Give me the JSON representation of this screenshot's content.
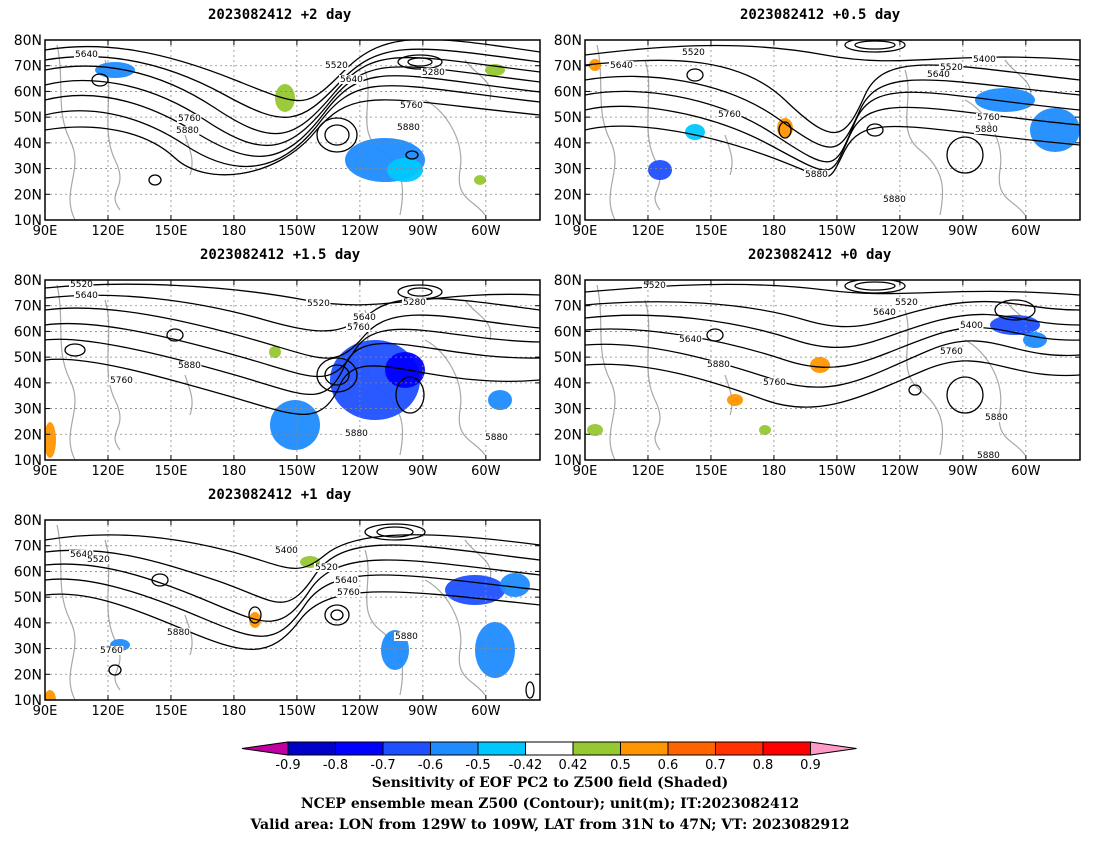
{
  "panels": [
    {
      "title": "2023082412 +2 day",
      "contour_labels": [
        "5640",
        "5520",
        "5640",
        "5280",
        "5760",
        "5760",
        "5880",
        "5880"
      ]
    },
    {
      "title": "2023082412 +0.5 day",
      "contour_labels": [
        "5520",
        "5640",
        "5400",
        "5520",
        "5640",
        "5760",
        "5760",
        "5880",
        "5880",
        "5880"
      ]
    },
    {
      "title": "2023082412 +1.5 day",
      "contour_labels": [
        "5520",
        "5640",
        "5520",
        "5280",
        "5640",
        "5760",
        "5760",
        "5880",
        "5880",
        "5880"
      ]
    },
    {
      "title": "2023082412 +0 day",
      "contour_labels": [
        "5520",
        "5520",
        "5640",
        "5400",
        "5640",
        "5760",
        "5880",
        "5760",
        "5880",
        "5880"
      ]
    },
    {
      "title": "2023082412 +1 day",
      "contour_labels": [
        "5400",
        "5520",
        "5640",
        "5520",
        "5640",
        "5760",
        "5880",
        "5760",
        "5880"
      ]
    }
  ],
  "axes": {
    "lat_labels": [
      "80N",
      "70N",
      "60N",
      "50N",
      "40N",
      "30N",
      "20N",
      "10N"
    ],
    "lon_labels": [
      "90E",
      "120E",
      "150E",
      "180",
      "150W",
      "120W",
      "90W",
      "60W"
    ]
  },
  "colorbar": {
    "tick_labels": [
      "-0.9",
      "-0.8",
      "-0.7",
      "-0.6",
      "-0.5",
      "-0.42",
      "0.42",
      "0.5",
      "0.6",
      "0.7",
      "0.8",
      "0.9"
    ],
    "colors": [
      "#c000a0",
      "#0000c8",
      "#0000ff",
      "#1e50ff",
      "#1e8cff",
      "#00c8ff",
      "#ffffff",
      "#96c832",
      "#ff9600",
      "#ff6400",
      "#ff3200",
      "#ff0000",
      "#ff9ac8"
    ]
  },
  "caption": {
    "line1": "Sensitivity of EOF PC2 to Z500 field (Shaded)",
    "line2": "NCEP ensemble mean Z500 (Contour); unit(m); IT:2023082412",
    "line3": "Valid area: LON from 129W to 109W, LAT from 31N to 47N; VT: 2023082912"
  }
}
